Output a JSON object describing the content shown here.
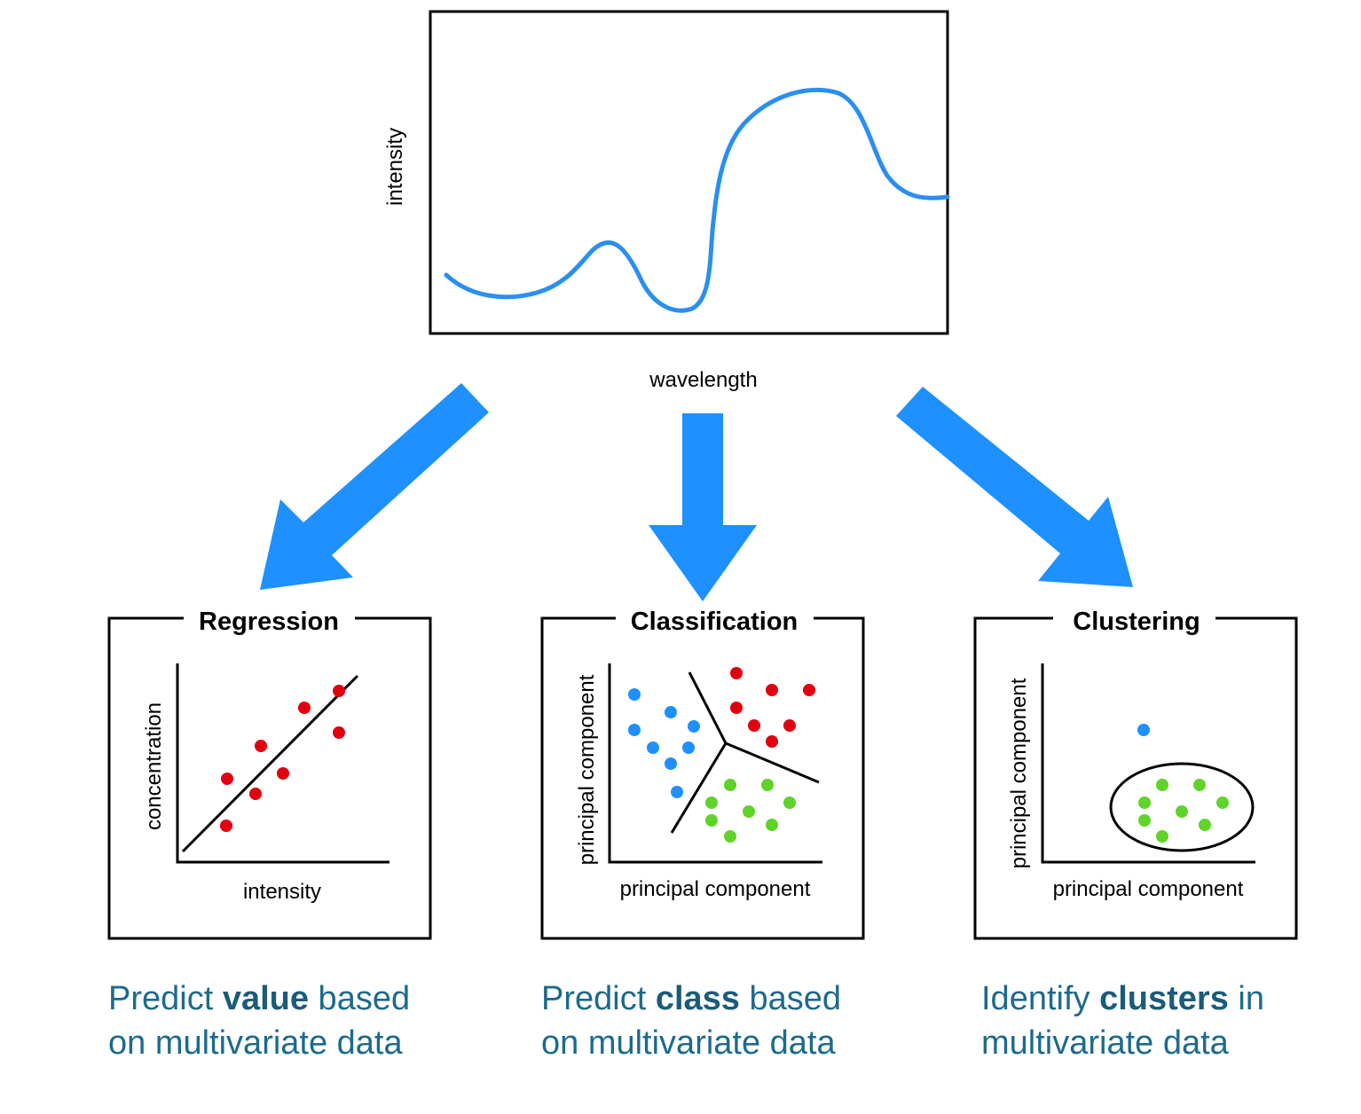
{
  "spectrum": {
    "xlabel": "wavelength",
    "ylabel": "intensity"
  },
  "panels": {
    "regression": {
      "title": "Regression",
      "xlabel": "intensity",
      "ylabel": "concentration",
      "caption_pre": "Predict ",
      "caption_bold": "value",
      "caption_post": " based",
      "caption_line2": "on multivariate data"
    },
    "classification": {
      "title": "Classification",
      "xlabel": "principal component",
      "ylabel": "principal component",
      "caption_pre": "Predict ",
      "caption_bold": "class",
      "caption_post": " based",
      "caption_line2": "on multivariate data"
    },
    "clustering": {
      "title": "Clustering",
      "xlabel": "principal component",
      "ylabel": "principal component",
      "caption_pre": "Identify ",
      "caption_bold": "clusters",
      "caption_post": " in",
      "caption_line2": "multivariate data"
    }
  },
  "colors": {
    "accent_blue": "#1e90ff",
    "red": "#e00010",
    "green": "#5fd32a",
    "caption": "#1d6a8c"
  }
}
